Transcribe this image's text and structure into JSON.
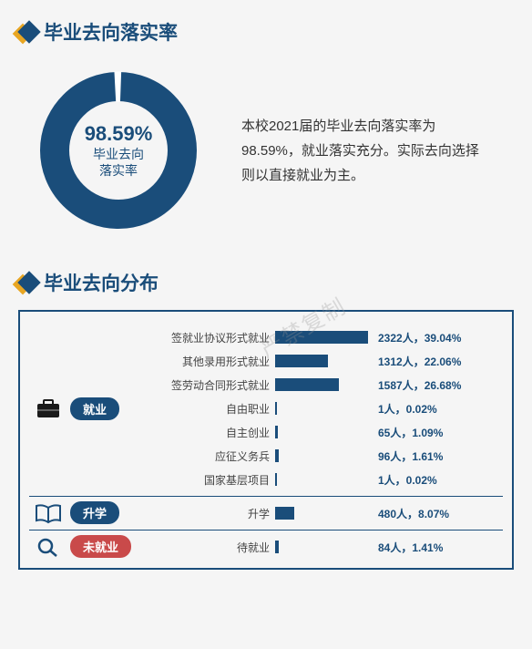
{
  "colors": {
    "primary": "#1a4d7a",
    "accent": "#e8a622",
    "pill_red": "#c94a4a",
    "bg": "#f5f5f5",
    "text": "#333333"
  },
  "section1": {
    "title": "毕业去向落实率",
    "donut": {
      "percent_value": 98.59,
      "percent_text": "98.59%",
      "center_label_l1": "毕业去向",
      "center_label_l2": "落实率",
      "ring_color": "#1a4d7a",
      "gap_color": "#ffffff",
      "thickness": 32
    },
    "description": "本校2021届的毕业去向落实率为98.59%，就业落实充分。实际去向选择则以直接就业为主。"
  },
  "section2": {
    "title": "毕业去向分布",
    "max_pct": 40,
    "categories": [
      {
        "name": "就业",
        "icon": "briefcase",
        "pill_color": "primary",
        "rows": [
          {
            "label": "签就业协议形式就业",
            "count": 2322,
            "pct": 39.04
          },
          {
            "label": "其他录用形式就业",
            "count": 1312,
            "pct": 22.06
          },
          {
            "label": "签劳动合同形式就业",
            "count": 1587,
            "pct": 26.68
          },
          {
            "label": "自由职业",
            "count": 1,
            "pct": 0.02
          },
          {
            "label": "自主创业",
            "count": 65,
            "pct": 1.09
          },
          {
            "label": "应征义务兵",
            "count": 96,
            "pct": 1.61
          },
          {
            "label": "国家基层项目",
            "count": 1,
            "pct": 0.02
          }
        ]
      },
      {
        "name": "升学",
        "icon": "book",
        "pill_color": "primary",
        "rows": [
          {
            "label": "升学",
            "count": 480,
            "pct": 8.07
          }
        ]
      },
      {
        "name": "未就业",
        "icon": "magnifier",
        "pill_color": "red",
        "rows": [
          {
            "label": "待就业",
            "count": 84,
            "pct": 1.41
          }
        ]
      }
    ]
  },
  "watermark": "严禁复制"
}
